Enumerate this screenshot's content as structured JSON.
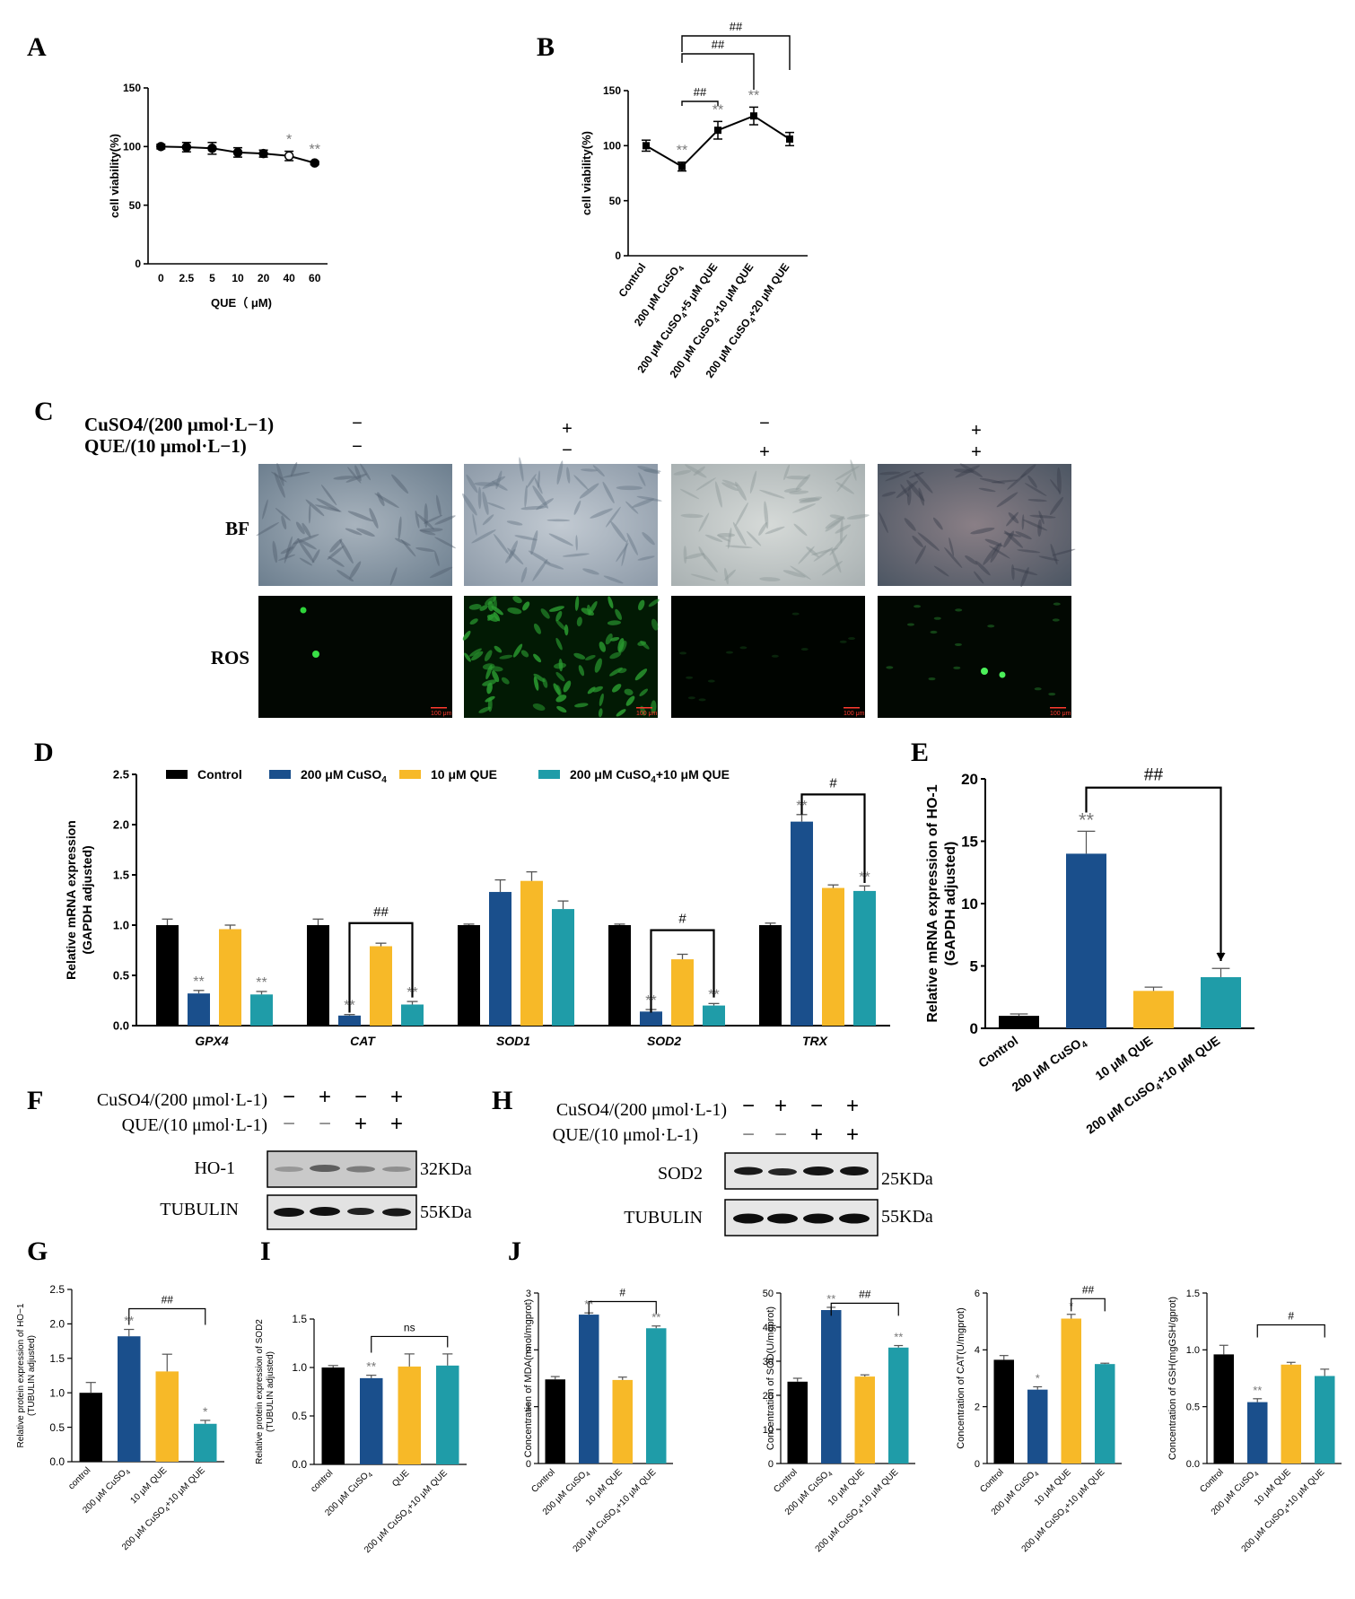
{
  "figure": {
    "panel_labels": [
      "A",
      "B",
      "C",
      "D",
      "E",
      "F",
      "G",
      "H",
      "I",
      "J"
    ],
    "colors": {
      "control": "#000000",
      "cuso4": "#1a4f8c",
      "que": "#f7b928",
      "combo": "#1f9ca8",
      "axis": "#000000",
      "sig": "#777777"
    }
  },
  "chart_data": [
    {
      "panel": "A",
      "type": "line",
      "categories": [
        "0",
        "2.5",
        "5",
        "10",
        "20",
        "40",
        "60"
      ],
      "values": [
        100,
        99.5,
        98.5,
        95,
        94,
        92,
        86
      ],
      "errors": [
        2,
        4,
        5,
        4,
        3,
        4,
        1.5
      ],
      "xlabel": "QUE（ μM)",
      "ylabel": "cell viability(%)",
      "ylim": [
        0,
        150
      ],
      "yticks": [
        "0",
        "50",
        "100",
        "150"
      ],
      "annotations": [
        {
          "cat": "40",
          "text": "*"
        },
        {
          "cat": "60",
          "text": "**"
        }
      ]
    },
    {
      "panel": "B",
      "type": "line",
      "categories": [
        "Control",
        "200 μM CuSO4",
        "200 μM CuSO4+5 μM QUE",
        "200 μM CuSO4+10 μM QUE",
        "200 μM CuSO4+20 μM QUE"
      ],
      "values": [
        100,
        81,
        114,
        127,
        106
      ],
      "errors": [
        5,
        4,
        8,
        8,
        6
      ],
      "xlabel": "",
      "ylabel": "cell viability(%)",
      "ylim": [
        0,
        150
      ],
      "yticks": [
        "0",
        "50",
        "100",
        "150"
      ],
      "annotations": [
        {
          "cat": "200 μM CuSO4",
          "text": "**"
        },
        {
          "cat": "200 μM CuSO4+5 μM QUE",
          "text": "**"
        },
        {
          "cat": "200 μM CuSO4+10 μM QUE",
          "text": "**"
        }
      ],
      "brackets": [
        {
          "from": "200 μM CuSO4",
          "to": "200 μM CuSO4+5 μM QUE",
          "text": "##"
        },
        {
          "from": "200 μM CuSO4",
          "to": "200 μM CuSO4+10 μM QUE",
          "text": "##"
        },
        {
          "from": "200 μM CuSO4",
          "to": "200 μM CuSO4+20 μM QUE",
          "text": "##"
        }
      ]
    },
    {
      "panel": "D",
      "type": "bar",
      "categories": [
        "GPX4",
        "CAT",
        "SOD1",
        "SOD2",
        "TRX"
      ],
      "series": [
        {
          "name": "Control",
          "values": [
            1.0,
            1.0,
            1.0,
            1.0,
            1.0
          ],
          "errors": [
            0.06,
            0.06,
            0.01,
            0.01,
            0.02
          ]
        },
        {
          "name": "200 μM CuSO4",
          "values": [
            0.32,
            0.1,
            1.33,
            0.14,
            2.03
          ],
          "errors": [
            0.03,
            0.01,
            0.12,
            0.02,
            0.07
          ]
        },
        {
          "name": "10 μM QUE",
          "values": [
            0.96,
            0.79,
            1.44,
            0.66,
            1.37
          ],
          "errors": [
            0.04,
            0.03,
            0.09,
            0.05,
            0.03
          ]
        },
        {
          "name": "200 μM CuSO4+10 μM QUE",
          "values": [
            0.31,
            0.21,
            1.16,
            0.2,
            1.34
          ],
          "errors": [
            0.03,
            0.03,
            0.08,
            0.02,
            0.05
          ]
        }
      ],
      "xlabel": "",
      "ylabel": "Relative mRNA expression (GAPDH adjusted)",
      "ylim": [
        0,
        2.5
      ],
      "yticks": [
        "0.0",
        "0.5",
        "1.0",
        "1.5",
        "2.0",
        "2.5"
      ],
      "legend": "top",
      "annotations": [
        {
          "cat": "GPX4",
          "series": 1,
          "text": "**"
        },
        {
          "cat": "GPX4",
          "series": 3,
          "text": "**"
        },
        {
          "cat": "CAT",
          "series": 1,
          "text": "**"
        },
        {
          "cat": "CAT",
          "series": 3,
          "text": "**"
        },
        {
          "cat": "SOD2",
          "series": 1,
          "text": "**"
        },
        {
          "cat": "SOD2",
          "series": 3,
          "text": "**"
        },
        {
          "cat": "TRX",
          "series": 1,
          "text": "**"
        },
        {
          "cat": "TRX",
          "series": 3,
          "text": "**"
        }
      ],
      "brackets": [
        {
          "cat": "CAT",
          "text": "##"
        },
        {
          "cat": "SOD2",
          "text": "#"
        },
        {
          "cat": "TRX",
          "text": "#"
        }
      ]
    },
    {
      "panel": "E",
      "type": "bar",
      "categories": [
        "Control",
        "200 μM CuSO4",
        "10 μM QUE",
        "200 μM CuSO4+10 μM QUE"
      ],
      "values": [
        1.0,
        14.0,
        3.0,
        4.1
      ],
      "errors": [
        0.15,
        1.8,
        0.3,
        0.7
      ],
      "xlabel": "",
      "ylabel": "Relative mRNA expression of HO-1 (GAPDH adjusted)",
      "ylim": [
        0,
        20
      ],
      "yticks": [
        "0",
        "5",
        "10",
        "15",
        "20"
      ],
      "annotations": [
        {
          "cat": "200 μM CuSO4",
          "text": "**"
        },
        {
          "cat": "200 μM CuSO4+10 μM QUE",
          "text": "*"
        }
      ],
      "brackets": [
        {
          "from": "200 μM CuSO4",
          "to": "200 μM CuSO4+10 μM QUE",
          "text": "##"
        }
      ]
    },
    {
      "panel": "G",
      "type": "bar",
      "categories": [
        "control",
        "200 μM CuSO4",
        "10 μM QUE",
        "200 μM CuSO4+10 μM QUE"
      ],
      "values": [
        1.0,
        1.82,
        1.31,
        0.55
      ],
      "errors": [
        0.15,
        0.1,
        0.25,
        0.05
      ],
      "ylabel": "Relative protein expression of HO−1 (TUBULIN adjusted)",
      "ylim": [
        0,
        2.5
      ],
      "yticks": [
        "0.0",
        "0.5",
        "1.0",
        "1.5",
        "2.0",
        "2.5"
      ],
      "annotations": [
        {
          "cat": "200 μM CuSO4",
          "text": "**"
        },
        {
          "cat": "200 μM CuSO4+10 μM QUE",
          "text": "*"
        }
      ],
      "brackets": [
        {
          "from": "200 μM CuSO4",
          "to": "200 μM CuSO4+10 μM QUE",
          "text": "##"
        }
      ]
    },
    {
      "panel": "I",
      "type": "bar",
      "categories": [
        "control",
        "200 μM CuSO4",
        "QUE",
        "200 μM CuSO4+10 μM QUE"
      ],
      "values": [
        1.0,
        0.89,
        1.01,
        1.02
      ],
      "errors": [
        0.02,
        0.03,
        0.13,
        0.12
      ],
      "ylabel": "Relative protein expression of SOD2 (TUBULIN adjusted)",
      "ylim": [
        0,
        1.5
      ],
      "yticks": [
        "0.0",
        "0.5",
        "1.0",
        "1.5"
      ],
      "annotations": [
        {
          "cat": "200 μM CuSO4",
          "text": "**"
        }
      ],
      "brackets": [
        {
          "from": "200 μM CuSO4",
          "to": "200 μM CuSO4+10 μM QUE",
          "text": "ns"
        }
      ]
    },
    {
      "panel": "J1",
      "type": "bar",
      "categories": [
        "Control",
        "200 μM CuSO4",
        "10 μM QUE",
        "200 μM CuSO4+10 μM QUE"
      ],
      "values": [
        1.48,
        2.62,
        1.47,
        2.38
      ],
      "errors": [
        0.05,
        0.03,
        0.05,
        0.04
      ],
      "ylabel": "Concentration of MDA(nmol/mgprot)",
      "ylim": [
        0,
        3
      ],
      "yticks": [
        "0",
        "1",
        "2",
        "3"
      ],
      "annotations": [
        {
          "cat": "200 μM CuSO4",
          "text": "**"
        },
        {
          "cat": "200 μM CuSO4+10 μM QUE",
          "text": "**"
        }
      ],
      "brackets": [
        {
          "from": "200 μM CuSO4",
          "to": "200 μM CuSO4+10 μM QUE",
          "text": "#"
        }
      ]
    },
    {
      "panel": "J2",
      "type": "bar",
      "categories": [
        "Control",
        "200 μM CuSO4",
        "10 μM QUE",
        "200 μM CuSO4+10 μM QUE"
      ],
      "values": [
        24,
        45,
        25.5,
        34
      ],
      "errors": [
        1.0,
        0.8,
        0.5,
        0.6
      ],
      "ylabel": "Concentration of SOD(U/mgprot)",
      "ylim": [
        0,
        50
      ],
      "yticks": [
        "0",
        "10",
        "20",
        "30",
        "40",
        "50"
      ],
      "annotations": [
        {
          "cat": "200 μM CuSO4",
          "text": "**"
        },
        {
          "cat": "200 μM CuSO4+10 μM QUE",
          "text": "**"
        }
      ],
      "brackets": [
        {
          "from": "200 μM CuSO4",
          "to": "200 μM CuSO4+10 μM QUE",
          "text": "##"
        }
      ]
    },
    {
      "panel": "J3",
      "type": "bar",
      "categories": [
        "Control",
        "200 μM CuSO4",
        "10 μM QUE",
        "200 μM CuSO4+10 μM QUE"
      ],
      "values": [
        3.65,
        2.6,
        5.1,
        3.5
      ],
      "errors": [
        0.15,
        0.1,
        0.15,
        0.03
      ],
      "ylabel": "Concentration of CAT(U/mgprot)",
      "ylim": [
        0,
        6
      ],
      "yticks": [
        "0",
        "2",
        "4",
        "6"
      ],
      "annotations": [
        {
          "cat": "200 μM CuSO4",
          "text": "*"
        },
        {
          "cat": "10 μM QUE",
          "text": "*"
        }
      ],
      "brackets": [
        {
          "from": "10 μM QUE",
          "to": "200 μM CuSO4+10 μM QUE",
          "text": "##"
        }
      ]
    },
    {
      "panel": "J4",
      "type": "bar",
      "categories": [
        "Control",
        "200 μM CuSO4",
        "10 μM QUE",
        "200 μM CuSO4+10 μM QUE"
      ],
      "values": [
        0.96,
        0.54,
        0.87,
        0.77
      ],
      "errors": [
        0.08,
        0.03,
        0.02,
        0.06
      ],
      "ylabel": "Concentration of GSH(mgGSH/gprot)",
      "ylim": [
        0,
        1.5
      ],
      "yticks": [
        "0.0",
        "0.5",
        "1.0",
        "1.5"
      ],
      "annotations": [
        {
          "cat": "200 μM CuSO4",
          "text": "**"
        }
      ],
      "brackets": [
        {
          "from": "200 μM CuSO4",
          "to": "200 μM CuSO4+10 μM QUE",
          "text": "#"
        }
      ]
    }
  ],
  "panel_c": {
    "row_labels": [
      "CuSO4/(200 μmol·L−1)",
      "QUE/(10 μmol·L−1)"
    ],
    "cuso4_signs": [
      "−",
      "+",
      "−",
      "+"
    ],
    "que_signs": [
      "−",
      "−",
      "+",
      "+"
    ],
    "image_rows": [
      "BF",
      "ROS"
    ],
    "scale_bar": "100 μm"
  },
  "blot_f": {
    "row_labels": [
      "CuSO4/(200 μmol·L-1)",
      "QUE/(10 μmol·L-1)"
    ],
    "cuso4_signs": [
      "−",
      "+",
      "−",
      "+"
    ],
    "que_signs": [
      "−",
      "−",
      "+",
      "+"
    ],
    "bands": [
      {
        "name": "HO-1",
        "size": "32KDa"
      },
      {
        "name": "TUBULIN",
        "size": "55KDa"
      }
    ]
  },
  "blot_h": {
    "row_labels": [
      "CuSO4/(200 μmol·L-1)",
      "QUE/(10 μmol·L-1)"
    ],
    "cuso4_signs": [
      "−",
      "+",
      "−",
      "+"
    ],
    "que_signs": [
      "−",
      "−",
      "+",
      "+"
    ],
    "bands": [
      {
        "name": "SOD2",
        "size": "25KDa"
      },
      {
        "name": "TUBULIN",
        "size": "55KDa"
      }
    ]
  }
}
